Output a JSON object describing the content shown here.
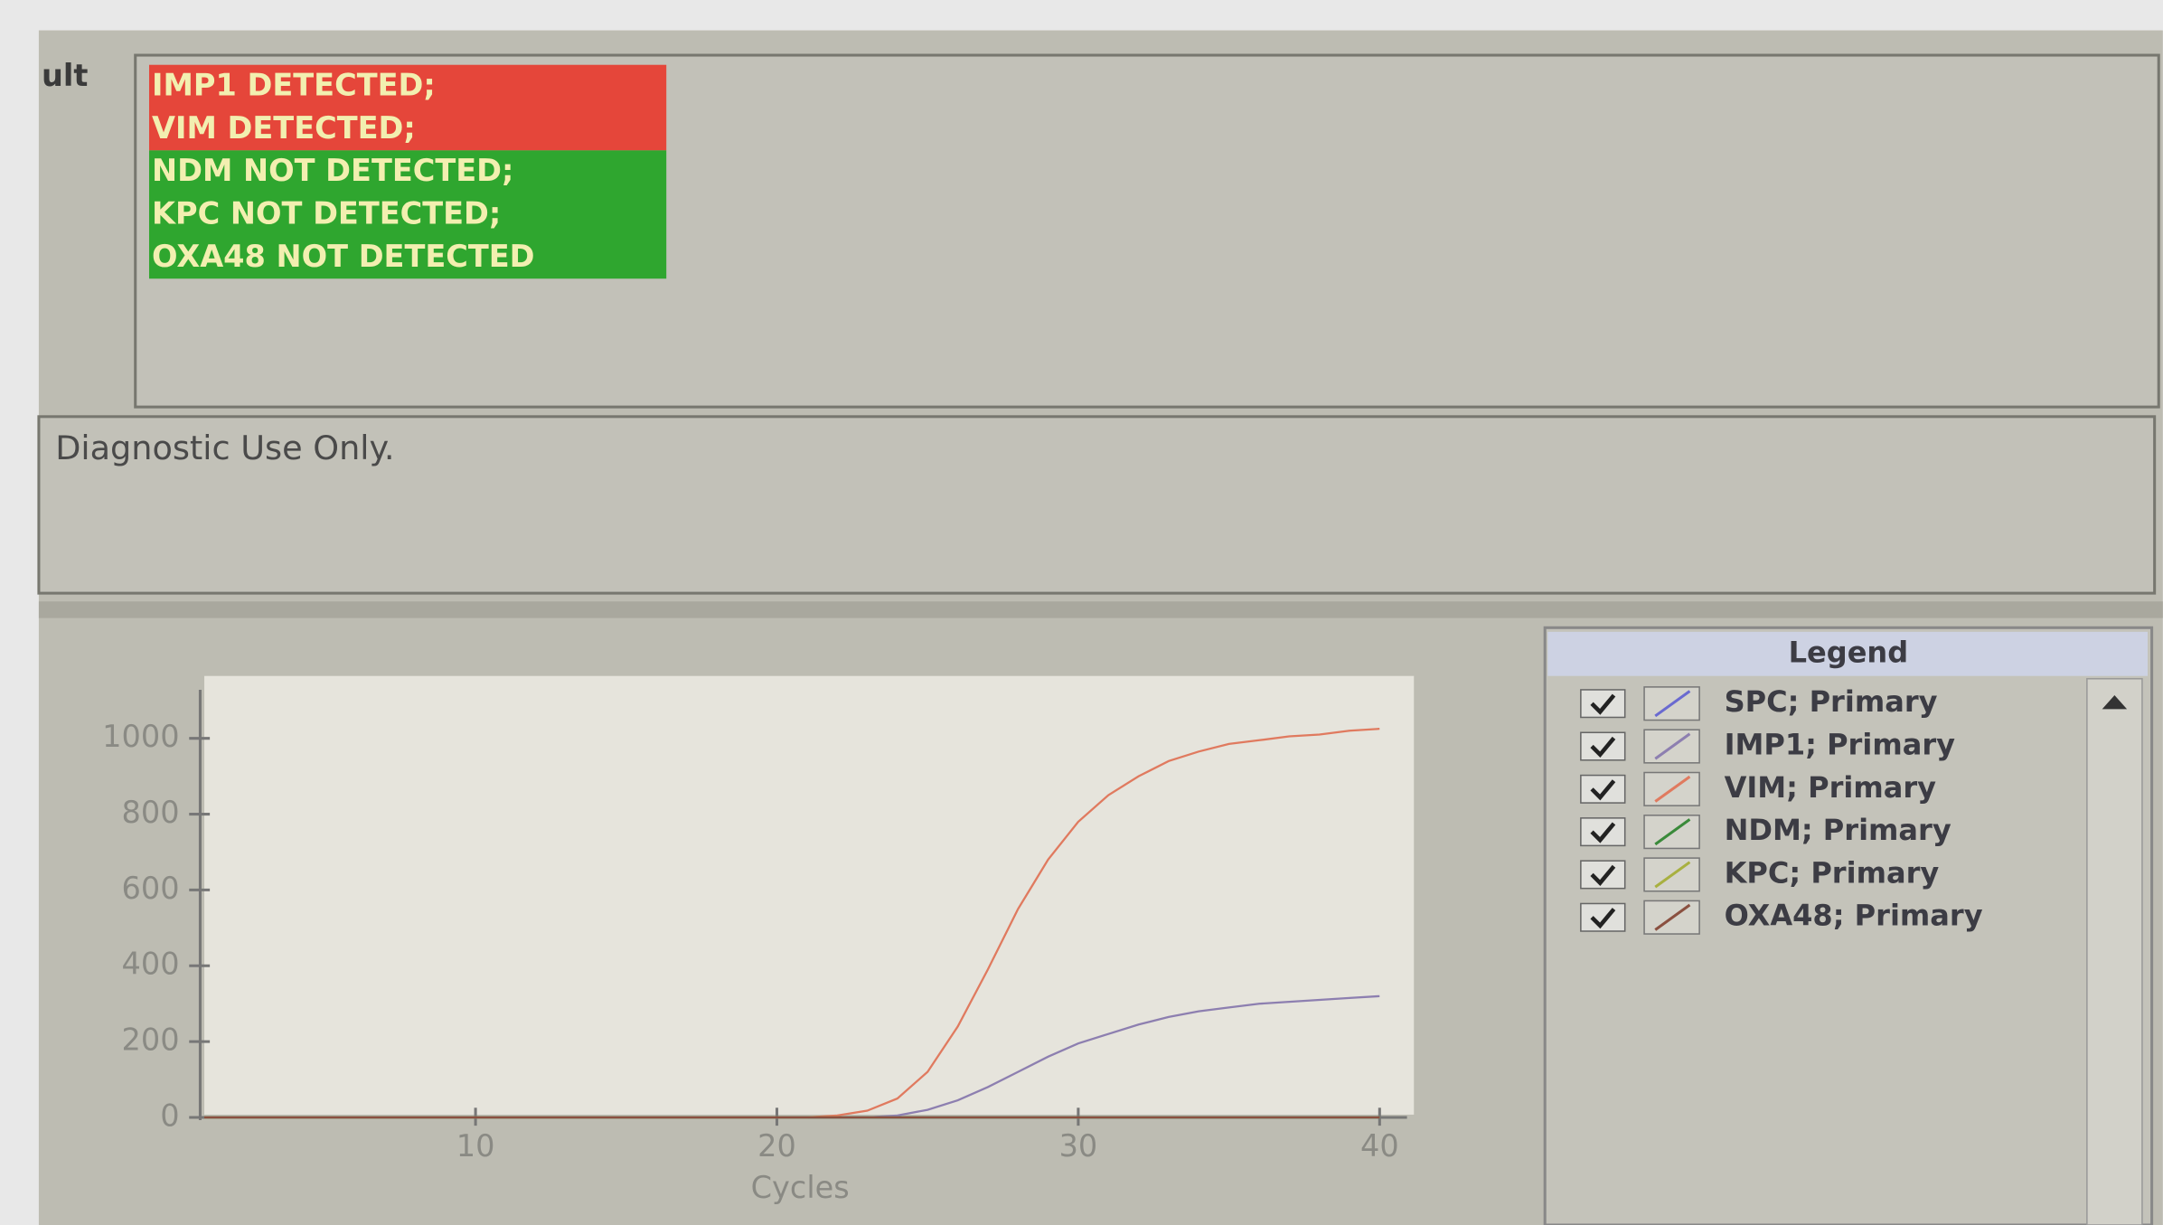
{
  "result_label": "ult",
  "results": {
    "detected": [
      "IMP1 DETECTED;",
      "VIM DETECTED;"
    ],
    "not_detected": [
      "NDM NOT DETECTED;",
      "KPC NOT DETECTED;",
      "OXA48 NOT DETECTED"
    ]
  },
  "notice": "Diagnostic Use Only.",
  "chart_data": {
    "type": "line",
    "xlabel": "Cycles",
    "legend_title": "Legend",
    "x": [
      1,
      20,
      21,
      22,
      23,
      24,
      25,
      26,
      27,
      28,
      29,
      30,
      31,
      32,
      33,
      34,
      35,
      36,
      37,
      38,
      39,
      40
    ],
    "xlim": [
      1,
      41
    ],
    "xticks": [
      10,
      20,
      30,
      40
    ],
    "ylim": [
      0,
      1150
    ],
    "yticks": [
      0,
      200,
      400,
      600,
      800,
      1000
    ],
    "series": [
      {
        "name": "SPC; Primary",
        "color": "#6a6ad0",
        "values": [
          0,
          0,
          0,
          0,
          0,
          0,
          0,
          0,
          0,
          0,
          0,
          0,
          0,
          0,
          0,
          0,
          0,
          0,
          0,
          0,
          0,
          0
        ]
      },
      {
        "name": "IMP1; Primary",
        "color": "#8d7fb0",
        "values": [
          0,
          0,
          0,
          0,
          0,
          5,
          20,
          45,
          80,
          120,
          160,
          195,
          220,
          245,
          265,
          280,
          290,
          300,
          305,
          310,
          315,
          320
        ]
      },
      {
        "name": "VIM; Primary",
        "color": "#e07a5f",
        "values": [
          0,
          0,
          0,
          5,
          18,
          50,
          120,
          240,
          390,
          550,
          680,
          780,
          850,
          900,
          940,
          965,
          985,
          995,
          1005,
          1010,
          1020,
          1025
        ]
      },
      {
        "name": "NDM; Primary",
        "color": "#3a8a3a",
        "values": [
          0,
          0,
          0,
          0,
          0,
          0,
          0,
          0,
          0,
          0,
          0,
          0,
          0,
          0,
          0,
          0,
          0,
          0,
          0,
          0,
          0,
          0
        ]
      },
      {
        "name": "KPC; Primary",
        "color": "#a8b040",
        "values": [
          0,
          0,
          0,
          0,
          0,
          0,
          0,
          0,
          0,
          0,
          0,
          0,
          0,
          0,
          0,
          0,
          0,
          0,
          0,
          0,
          0,
          0
        ]
      },
      {
        "name": "OXA48; Primary",
        "color": "#8a5040",
        "values": [
          0,
          0,
          0,
          0,
          0,
          0,
          0,
          0,
          0,
          0,
          0,
          0,
          0,
          0,
          0,
          0,
          0,
          0,
          0,
          0,
          0,
          0
        ]
      }
    ]
  }
}
